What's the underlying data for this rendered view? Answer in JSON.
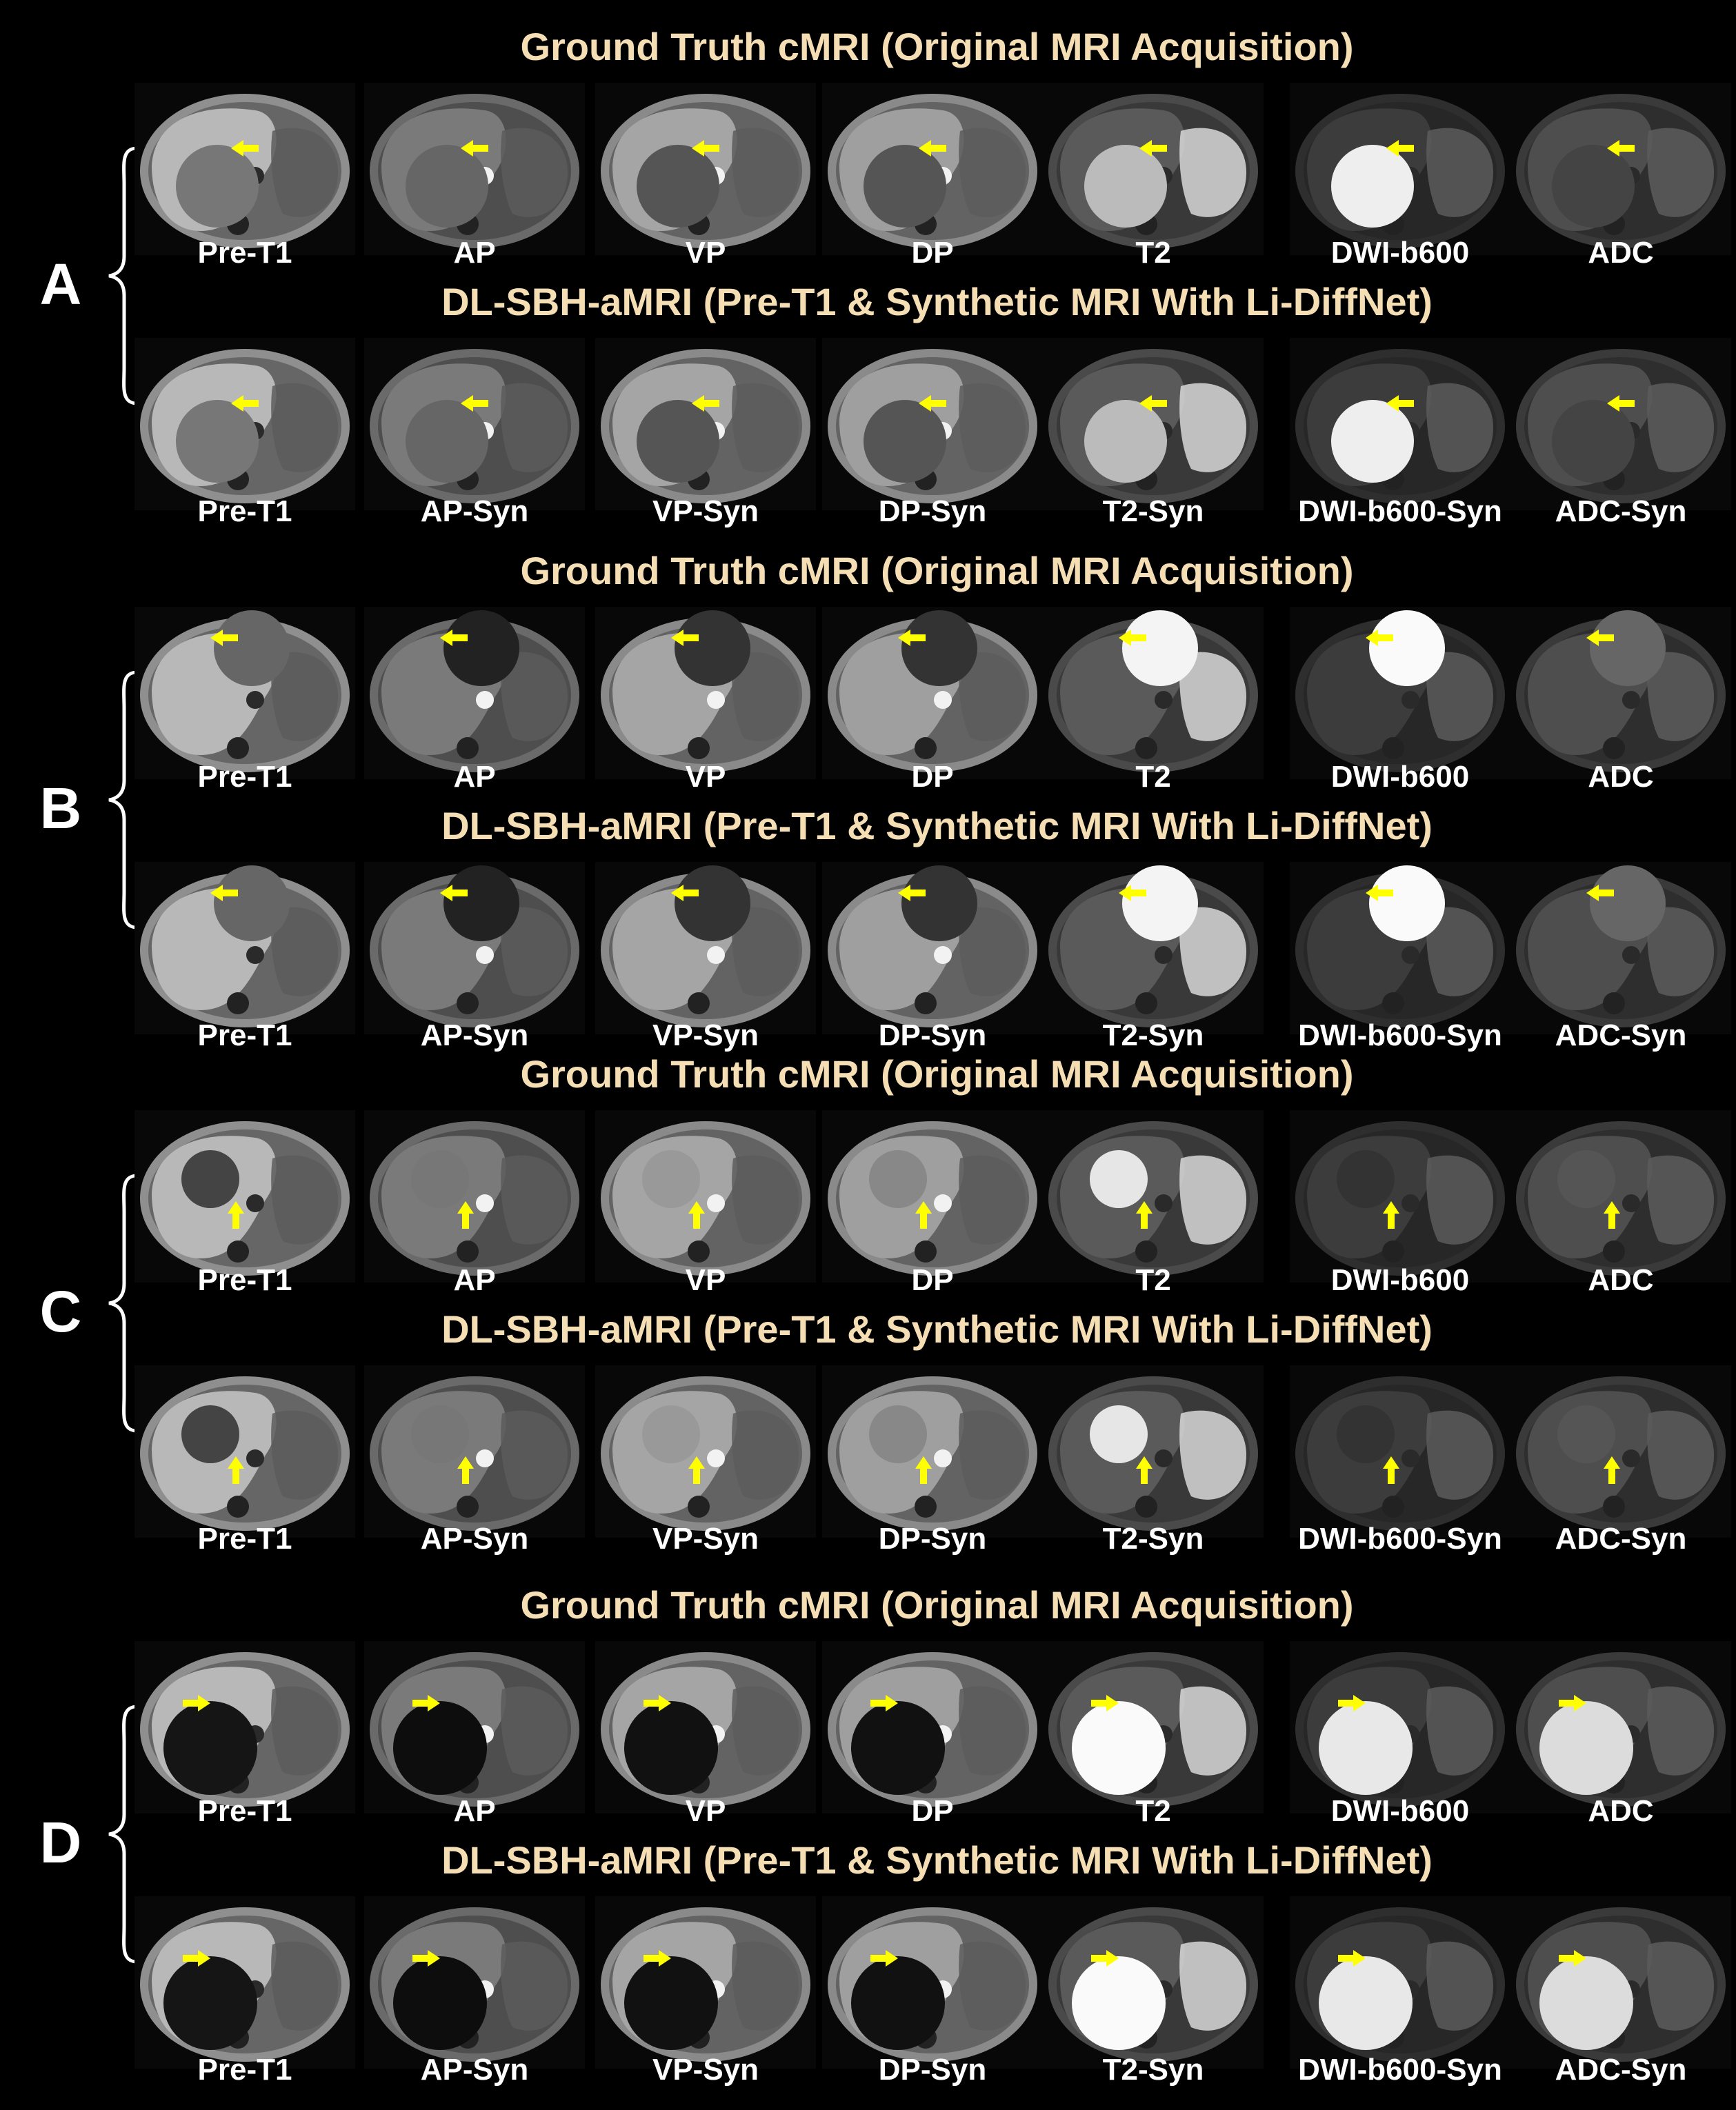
{
  "figure": {
    "background": "#000000",
    "heading_color": "#f5deb3",
    "label_color": "#ffffff",
    "arrow_color": "#ffff00",
    "panels": [
      {
        "letter": "A",
        "rows": [
          {
            "heading": "Ground Truth cMRI (Original MRI Acquisition)",
            "labels": [
              "Pre-T1",
              "AP",
              "VP",
              "DP",
              "T2",
              "DWI-b600",
              "ADC"
            ]
          },
          {
            "heading": "DL-SBH-aMRI (Pre-T1 & Synthetic MRI With Li-DiffNet)",
            "labels": [
              "Pre-T1",
              "AP-Syn",
              "VP-Syn",
              "DP-Syn",
              "T2-Syn",
              "DWI-b600-Syn",
              "ADC-Syn"
            ]
          }
        ]
      },
      {
        "letter": "B",
        "rows": [
          {
            "heading": "Ground Truth cMRI (Original MRI Acquisition)",
            "labels": [
              "Pre-T1",
              "AP",
              "VP",
              "DP",
              "T2",
              "DWI-b600",
              "ADC"
            ]
          },
          {
            "heading": "DL-SBH-aMRI (Pre-T1 & Synthetic MRI With Li-DiffNet)",
            "labels": [
              "Pre-T1",
              "AP-Syn",
              "VP-Syn",
              "DP-Syn",
              "T2-Syn",
              "DWI-b600-Syn",
              "ADC-Syn"
            ]
          }
        ]
      },
      {
        "letter": "C",
        "rows": [
          {
            "heading": "Ground Truth cMRI (Original MRI Acquisition)",
            "labels": [
              "Pre-T1",
              "AP",
              "VP",
              "DP",
              "T2",
              "DWI-b600",
              "ADC"
            ]
          },
          {
            "heading": "DL-SBH-aMRI (Pre-T1 & Synthetic MRI With Li-DiffNet)",
            "labels": [
              "Pre-T1",
              "AP-Syn",
              "VP-Syn",
              "DP-Syn",
              "T2-Syn",
              "DWI-b600-Syn",
              "ADC-Syn"
            ]
          }
        ]
      },
      {
        "letter": "D",
        "rows": [
          {
            "heading": "Ground Truth cMRI (Original MRI Acquisition)",
            "labels": [
              "Pre-T1",
              "AP",
              "VP",
              "DP",
              "T2",
              "DWI-b600",
              "ADC"
            ]
          },
          {
            "heading": "DL-SBH-aMRI (Pre-T1 & Synthetic MRI With Li-DiffNet)",
            "labels": [
              "Pre-T1",
              "AP-Syn",
              "VP-Syn",
              "DP-Syn",
              "T2-Syn",
              "DWI-b600-Syn",
              "ADC-Syn"
            ]
          }
        ]
      }
    ]
  }
}
